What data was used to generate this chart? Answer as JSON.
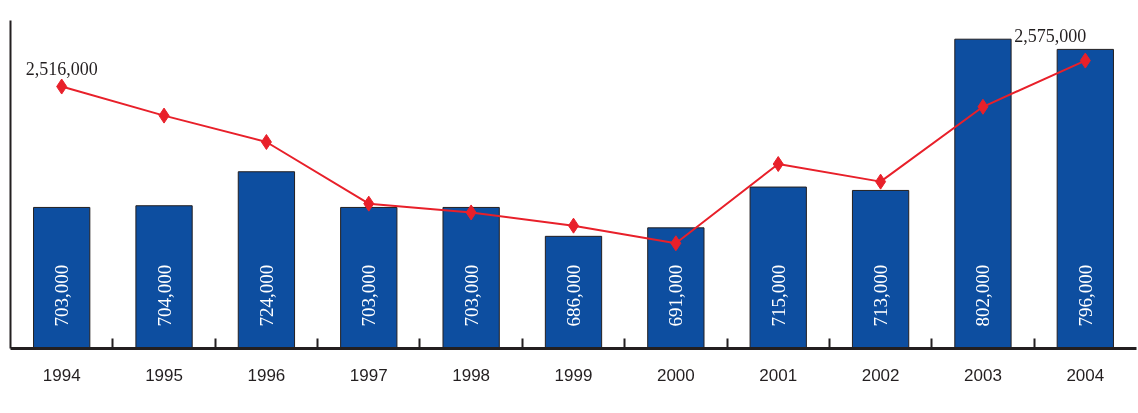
{
  "chart_data": {
    "type": "bar",
    "categories": [
      "1994",
      "1995",
      "1996",
      "1997",
      "1998",
      "1999",
      "2000",
      "2001",
      "2002",
      "2003",
      "2004"
    ],
    "ylim": [
      620000,
      813000
    ],
    "y2lim": [
      1921000,
      2666000
    ],
    "tick_labels": "x",
    "grid": false,
    "series": [
      {
        "color": "#0d4ea0",
        "values": [
          703000,
          704000,
          724000,
          703000,
          703000,
          686000,
          691000,
          715000,
          713000,
          802000,
          796000
        ],
        "value_labels": [
          "703,000",
          "704,000",
          "724,000",
          "703,000",
          "703,000",
          "686,000",
          "691,000",
          "715,000",
          "713,000",
          "802,000",
          "796,000"
        ]
      },
      {
        "type": "line",
        "axis": "y2",
        "color": "#e8202a",
        "marker": "diamond",
        "line_style": "solid",
        "values": [
          2516000,
          2450000,
          2390000,
          2250000,
          2230000,
          2200000,
          2160000,
          2340000,
          2300000,
          2470000,
          2575000
        ],
        "value_labels": [
          "2,516,000",
          null,
          null,
          null,
          null,
          null,
          null,
          null,
          null,
          null,
          "2,575,000"
        ]
      }
    ]
  }
}
